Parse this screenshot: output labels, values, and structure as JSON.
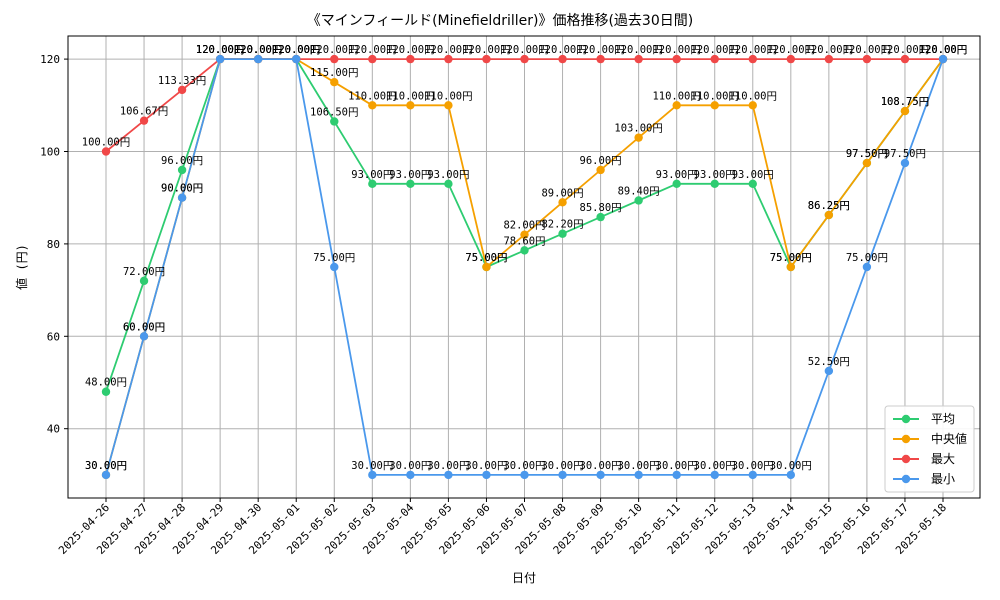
{
  "chart_data": {
    "type": "line",
    "title": "《マインフィールド(Minefieldriller)》価格推移(過去30日間)",
    "xlabel": "日付",
    "ylabel": "値 (円)",
    "ylim": [
      25,
      125
    ],
    "yticks": [
      40,
      60,
      80,
      100,
      120
    ],
    "grid": true,
    "legend_position": "bottom-right",
    "unit_suffix": "円",
    "categories": [
      "2025-04-26",
      "2025-04-27",
      "2025-04-28",
      "2025-04-29",
      "2025-04-30",
      "2025-05-01",
      "2025-05-02",
      "2025-05-03",
      "2025-05-04",
      "2025-05-05",
      "2025-05-06",
      "2025-05-07",
      "2025-05-08",
      "2025-05-09",
      "2025-05-10",
      "2025-05-11",
      "2025-05-12",
      "2025-05-13",
      "2025-05-14",
      "2025-05-15",
      "2025-05-16",
      "2025-05-17",
      "2025-05-18"
    ],
    "series": [
      {
        "name": "平均",
        "color": "#2ecc71",
        "values": [
          48,
          72,
          96,
          120,
          120,
          120,
          106.5,
          93,
          93,
          93,
          75,
          78.6,
          82.2,
          85.8,
          89.4,
          93,
          93,
          93,
          75,
          86.25,
          97.5,
          108.75,
          120
        ]
      },
      {
        "name": "中央値",
        "color": "#f5a000",
        "values": [
          30,
          60,
          90,
          120,
          120,
          120,
          115,
          110,
          110,
          110,
          75,
          82,
          89,
          96,
          103,
          110,
          110,
          110,
          75,
          86.25,
          97.5,
          108.75,
          120
        ]
      },
      {
        "name": "最大",
        "color": "#f04848",
        "values": [
          100,
          106.67,
          113.33,
          120,
          120,
          120,
          120,
          120,
          120,
          120,
          120,
          120,
          120,
          120,
          120,
          120,
          120,
          120,
          120,
          120,
          120,
          120,
          120
        ]
      },
      {
        "name": "最小",
        "color": "#4a98ec",
        "values": [
          30,
          60,
          90,
          120,
          120,
          120,
          75,
          30,
          30,
          30,
          30,
          30,
          30,
          30,
          30,
          30,
          30,
          30,
          30,
          52.5,
          75,
          97.5,
          120
        ]
      }
    ]
  }
}
